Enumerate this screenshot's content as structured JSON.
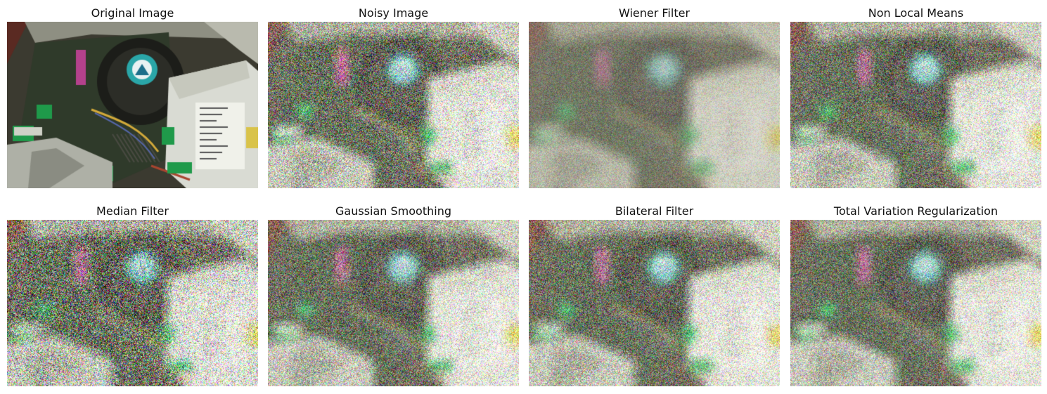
{
  "figure": {
    "panels": [
      {
        "title": "Original Image",
        "kind": "original",
        "noise": 0,
        "blur": 0
      },
      {
        "title": "Noisy Image",
        "kind": "noisy",
        "noise": 1.0,
        "blur": 0.15
      },
      {
        "title": "Wiener Filter",
        "kind": "wiener",
        "noise": 0.55,
        "blur": 0.5
      },
      {
        "title": "Non Local Means",
        "kind": "nlm",
        "noise": 0.85,
        "blur": 0.3
      },
      {
        "title": "Median Filter",
        "kind": "median",
        "noise": 1.3,
        "blur": 0.25
      },
      {
        "title": "Gaussian Smoothing",
        "kind": "gaussian",
        "noise": 0.9,
        "blur": 0.3
      },
      {
        "title": "Bilateral Filter",
        "kind": "bilateral",
        "noise": 0.88,
        "blur": 0.3
      },
      {
        "title": "Total Variation Regularization",
        "kind": "tv",
        "noise": 0.8,
        "blur": 0.32
      }
    ]
  }
}
